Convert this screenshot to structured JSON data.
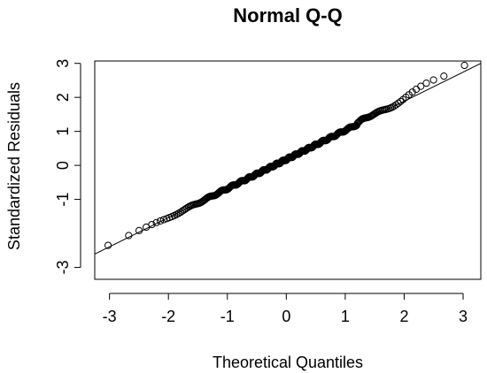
{
  "chart_data": {
    "type": "scatter",
    "title": "Normal Q-Q",
    "xlabel": "Theoretical Quantiles",
    "ylabel": "Standardized Residuals",
    "xlim": [
      -3.25,
      3.3
    ],
    "ylim": [
      -3.35,
      3.07
    ],
    "x_ticks": [
      -3,
      -2,
      -1,
      0,
      1,
      2,
      3
    ],
    "y_ticks": [
      -3,
      -1,
      0,
      1,
      2,
      3
    ],
    "reference_line": {
      "x": [
        -3.3,
        3.3
      ],
      "y": [
        -2.65,
        3.0
      ]
    },
    "grid": false,
    "legend": "none",
    "points_shape": "open-circle",
    "n_points": 400
  }
}
